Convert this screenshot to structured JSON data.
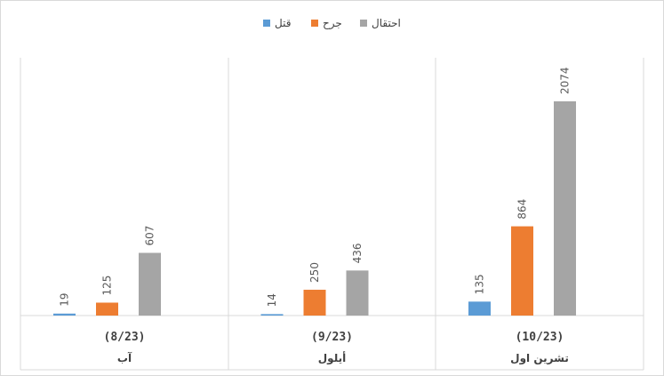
{
  "chart_data": {
    "type": "bar",
    "categories": [
      {
        "date": "(8/23)",
        "name": "آب"
      },
      {
        "date": "(9/23)",
        "name": "أيلول"
      },
      {
        "date": "(10/23)",
        "name": "تشرين اول"
      }
    ],
    "series": [
      {
        "name": "قتل",
        "color": "#5b9bd5",
        "values": [
          19,
          14,
          135
        ]
      },
      {
        "name": "جرح",
        "color": "#ed7d31",
        "values": [
          125,
          250,
          864
        ]
      },
      {
        "name": "احتقال",
        "color": "#a5a5a5",
        "values": [
          607,
          436,
          2074
        ]
      }
    ],
    "ylim": [
      0,
      2074
    ],
    "legend": "top-center",
    "grid": false
  }
}
